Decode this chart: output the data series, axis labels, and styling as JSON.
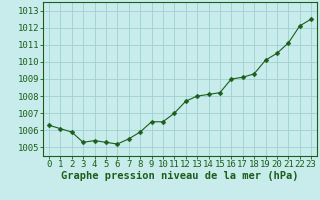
{
  "x": [
    0,
    1,
    2,
    3,
    4,
    5,
    6,
    7,
    8,
    9,
    10,
    11,
    12,
    13,
    14,
    15,
    16,
    17,
    18,
    19,
    20,
    21,
    22,
    23
  ],
  "y": [
    1006.3,
    1006.1,
    1005.9,
    1005.3,
    1005.4,
    1005.3,
    1005.2,
    1005.5,
    1005.9,
    1006.5,
    1006.5,
    1007.0,
    1007.7,
    1008.0,
    1008.1,
    1008.2,
    1009.0,
    1009.1,
    1009.3,
    1010.1,
    1010.5,
    1011.1,
    1012.1,
    1012.5
  ],
  "ylim": [
    1004.5,
    1013.5
  ],
  "yticks": [
    1005,
    1006,
    1007,
    1008,
    1009,
    1010,
    1011,
    1012,
    1013
  ],
  "xlim": [
    -0.5,
    23.5
  ],
  "xticks": [
    0,
    1,
    2,
    3,
    4,
    5,
    6,
    7,
    8,
    9,
    10,
    11,
    12,
    13,
    14,
    15,
    16,
    17,
    18,
    19,
    20,
    21,
    22,
    23
  ],
  "xlabel": "Graphe pression niveau de la mer (hPa)",
  "line_color": "#1a5e1a",
  "marker": "D",
  "marker_size": 2.5,
  "bg_color": "#c8ecec",
  "grid_color": "#a0d0d0",
  "axis_color": "#1a5e1a",
  "tick_label_color": "#1a5e1a",
  "xlabel_color": "#1a5e1a",
  "xlabel_fontsize": 7.5,
  "tick_fontsize": 6.5
}
